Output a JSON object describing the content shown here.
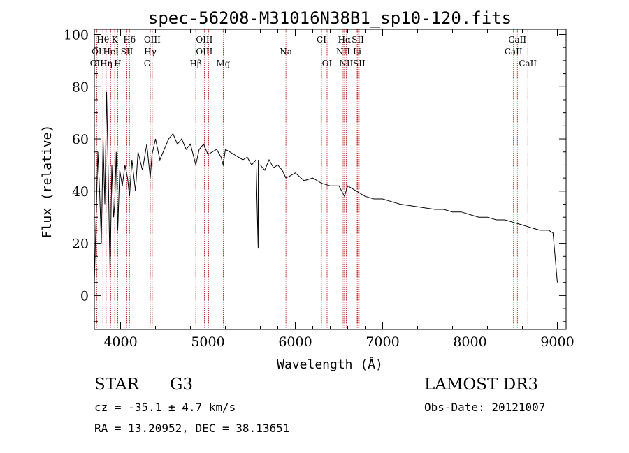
{
  "chart_data": {
    "type": "line",
    "title": "spec-56208-M31016N38B1_sp10-120.fits",
    "xlabel": "Wavelength (Å)",
    "ylabel": "Flux (relative)",
    "xlim": [
      3700,
      9100
    ],
    "ylim": [
      -13,
      102
    ],
    "xticks": [
      4000,
      5000,
      6000,
      7000,
      8000,
      9000
    ],
    "yticks": [
      0,
      20,
      40,
      60,
      80,
      100
    ],
    "series": [
      {
        "name": "flux",
        "x": [
          3700,
          3720,
          3740,
          3760,
          3780,
          3800,
          3820,
          3840,
          3860,
          3880,
          3900,
          3920,
          3933,
          3950,
          3968,
          3990,
          4020,
          4050,
          4080,
          4102,
          4130,
          4170,
          4200,
          4250,
          4300,
          4340,
          4360,
          4400,
          4450,
          4500,
          4550,
          4600,
          4650,
          4700,
          4750,
          4800,
          4861,
          4900,
          4950,
          5000,
          5050,
          5100,
          5150,
          5175,
          5200,
          5250,
          5300,
          5350,
          5400,
          5450,
          5500,
          5550,
          5575,
          5577,
          5580,
          5600,
          5650,
          5700,
          5750,
          5800,
          5850,
          5893,
          5950,
          6000,
          6100,
          6200,
          6300,
          6400,
          6500,
          6563,
          6600,
          6700,
          6800,
          6900,
          7000,
          7100,
          7200,
          7300,
          7400,
          7500,
          7600,
          7700,
          7800,
          7900,
          8000,
          8100,
          8200,
          8300,
          8400,
          8500,
          8600,
          8700,
          8800,
          8900,
          8950,
          9000
        ],
        "y": [
          5,
          30,
          55,
          40,
          20,
          60,
          35,
          78,
          45,
          8,
          50,
          30,
          35,
          55,
          25,
          48,
          42,
          50,
          45,
          38,
          52,
          40,
          55,
          48,
          58,
          45,
          54,
          60,
          52,
          56,
          60,
          62,
          58,
          60,
          56,
          58,
          50,
          56,
          58,
          54,
          55,
          56,
          53,
          50,
          56,
          55,
          54,
          53,
          52,
          53,
          50,
          52,
          18,
          52,
          50,
          50,
          48,
          52,
          49,
          50,
          48,
          45,
          46,
          47,
          44,
          45,
          43,
          42,
          42,
          38,
          42,
          40,
          38,
          37,
          37,
          36,
          35,
          34.5,
          34,
          33.5,
          33,
          33,
          32,
          32,
          31,
          30,
          30,
          29,
          29,
          28,
          27,
          26,
          25,
          25,
          24,
          5
        ]
      }
    ],
    "lines": [
      {
        "label": "Hθ",
        "x": 3798,
        "row": 0
      },
      {
        "label": "K",
        "x": 3933,
        "row": 0
      },
      {
        "label": "Hδ",
        "x": 4102,
        "row": 0
      },
      {
        "label": "OIII",
        "x": 4363,
        "row": 0
      },
      {
        "label": "OIII",
        "x": 4959,
        "row": 0
      },
      {
        "label": "CI",
        "x": 6300,
        "row": 0
      },
      {
        "label": "Hα",
        "x": 6563,
        "row": 0
      },
      {
        "label": "SII",
        "x": 6716,
        "row": 0
      },
      {
        "label": "CaII",
        "x": 8542,
        "row": 0
      },
      {
        "label": "OI",
        "x": 3727,
        "row": 1
      },
      {
        "label": "HeI",
        "x": 3889,
        "row": 1
      },
      {
        "label": "SII",
        "x": 4072,
        "row": 1
      },
      {
        "label": "Hγ",
        "x": 4340,
        "row": 1
      },
      {
        "label": "OIII",
        "x": 4959,
        "row": 1
      },
      {
        "label": "Na",
        "x": 5893,
        "row": 1
      },
      {
        "label": "NII",
        "x": 6548,
        "row": 1
      },
      {
        "label": "Li",
        "x": 6708,
        "row": 1
      },
      {
        "label": "CaII",
        "x": 8498,
        "row": 1
      },
      {
        "label": "OII",
        "x": 3727,
        "row": 2
      },
      {
        "label": "Hη",
        "x": 3835,
        "row": 2
      },
      {
        "label": "H",
        "x": 3968,
        "row": 2
      },
      {
        "label": "G",
        "x": 4304,
        "row": 2
      },
      {
        "label": "Hβ",
        "x": 4861,
        "row": 2
      },
      {
        "label": "Mg",
        "x": 5175,
        "row": 2
      },
      {
        "label": "OI",
        "x": 6364,
        "row": 2
      },
      {
        "label": "NII",
        "x": 6583,
        "row": 2
      },
      {
        "label": "SII",
        "x": 6731,
        "row": 2
      },
      {
        "label": "CaII",
        "x": 8662,
        "row": 2
      }
    ],
    "markers": [
      3727,
      3798,
      3835,
      3889,
      3933,
      3968,
      4072,
      4102,
      4304,
      4340,
      4363,
      4861,
      4959,
      5007,
      5175,
      5893,
      6300,
      6364,
      6548,
      6563,
      6583,
      6708,
      6716,
      6731,
      8498,
      8542,
      8662
    ],
    "colors": {
      "flux": "#000000",
      "markers": "#b00000"
    }
  },
  "info": {
    "class": "STAR",
    "subclass": "G3",
    "survey": "LAMOST DR3",
    "cz": "cz = -35.1 ± 4.7 km/s",
    "obsdate": "Obs-Date: 20121007",
    "radec": "RA =  13.20952, DEC =  38.13651"
  }
}
